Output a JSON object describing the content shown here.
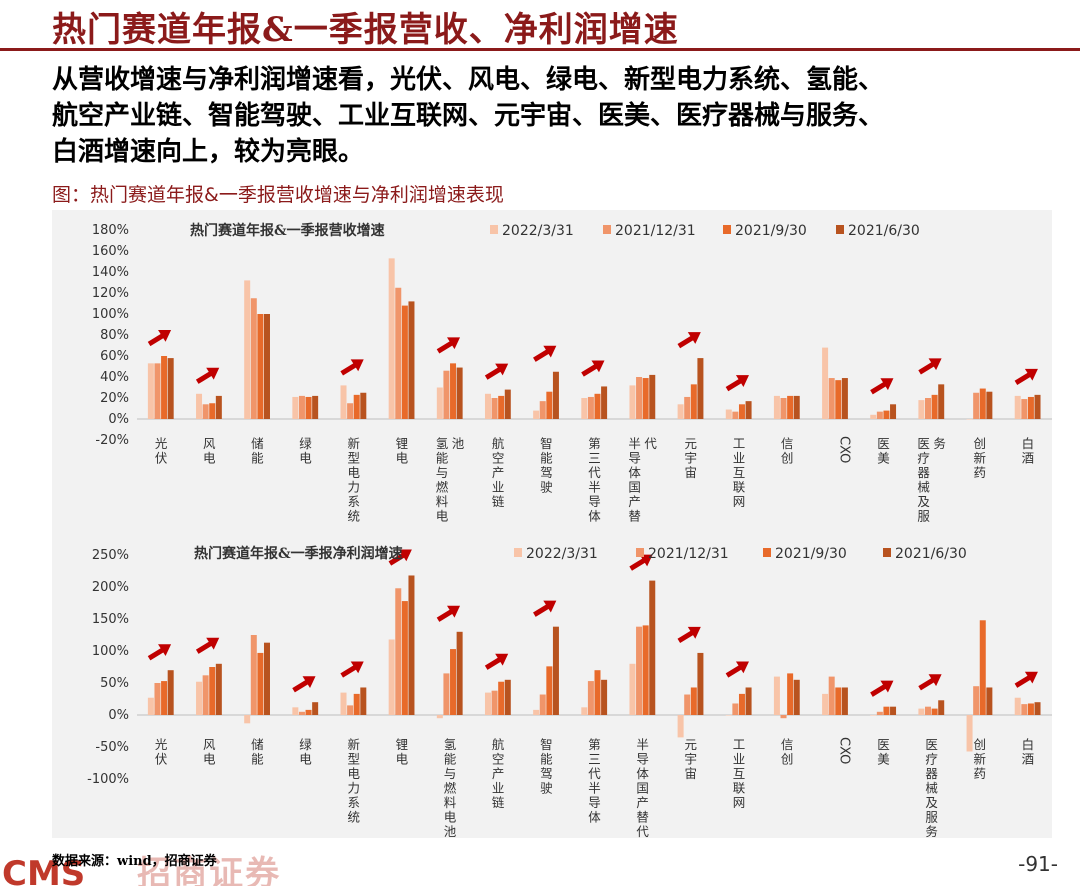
{
  "page": {
    "title": "热门赛道年报&一季报营收、净利润增速",
    "body_lines": [
      "从营收增速与净利润增速看，光伏、风电、绿电、新型电力系统、氢能、",
      "航空产业链、智能驾驶、工业互联网、元宇宙、医美、医疗器械与服务、",
      "白酒增速向上，较为亮眼。"
    ],
    "figure_label": "图：热门赛道年报&一季报营收增速与净利润增速表现",
    "source": "数据来源：wind，招商证券",
    "logo_text": "CMS",
    "logo_cn": "招商证券",
    "page_number": "-91-"
  },
  "colors": {
    "series": [
      "#f8c4a8",
      "#f0956a",
      "#e86a2a",
      "#b8531f"
    ],
    "arrow": "#c00000",
    "title": "#8B1A1A"
  },
  "chart_data": [
    {
      "type": "bar",
      "title": "热门赛道年报&一季报营收增速",
      "categories": [
        "光伏",
        "风电",
        "储能",
        "绿电",
        "新型电力系统",
        "锂电",
        "氢能与燃料电池",
        "航空产业链",
        "智能驾驶",
        "第三代半导体",
        "半导体国产替代",
        "元宇宙",
        "工业互联网",
        "信创",
        "CXO",
        "医美",
        "医疗器械及服务",
        "创新药",
        "白酒"
      ],
      "category_line_breaks": [
        [
          "光伏"
        ],
        [
          "风电"
        ],
        [
          "储能"
        ],
        [
          "绿电"
        ],
        [
          "新型电力系统"
        ],
        [
          "锂电"
        ],
        [
          "氢能与燃料电",
          "池"
        ],
        [
          "航空产业链"
        ],
        [
          "智能驾驶"
        ],
        [
          "第三代半导体"
        ],
        [
          "半导体国产替",
          "代"
        ],
        [
          "元宇宙"
        ],
        [
          "工业互联网"
        ],
        [
          "信创"
        ],
        [
          "CXO"
        ],
        [
          "医美"
        ],
        [
          "医疗器械及服",
          "务"
        ],
        [
          "创新药"
        ],
        [
          "白酒"
        ]
      ],
      "series": [
        {
          "name": "2022/3/31",
          "values": [
            53,
            24,
            132,
            21,
            32,
            153,
            30,
            24,
            8,
            20,
            32,
            14,
            9,
            22,
            68,
            4,
            18,
            0,
            22
          ]
        },
        {
          "name": "2021/12/31",
          "values": [
            53,
            14,
            115,
            22,
            15,
            125,
            46,
            20,
            17,
            21,
            40,
            21,
            7,
            20,
            39,
            7,
            20,
            25,
            19
          ]
        },
        {
          "name": "2021/9/30",
          "values": [
            60,
            15,
            100,
            21,
            23,
            108,
            53,
            22,
            26,
            24,
            39,
            33,
            14,
            22,
            37,
            8,
            23,
            29,
            21
          ]
        },
        {
          "name": "2021/6/30",
          "values": [
            58,
            22,
            100,
            22,
            25,
            112,
            49,
            28,
            45,
            31,
            42,
            58,
            17,
            22,
            39,
            14,
            33,
            26,
            23
          ]
        }
      ],
      "y_unit": "%",
      "ylim": [
        -20,
        180
      ],
      "y_ticks": [
        -20,
        0,
        20,
        40,
        60,
        80,
        100,
        120,
        140,
        160,
        180
      ],
      "arrows_after": [
        "光伏",
        "风电",
        "新型电力系统",
        "氢能与燃料电池",
        "航空产业链",
        "智能驾驶",
        "第三代半导体",
        "元宇宙",
        "工业互联网",
        "医美",
        "医疗器械及服务",
        "白酒"
      ],
      "legend_position": "top-right",
      "grid": false
    },
    {
      "type": "bar",
      "title": "热门赛道年报&一季报净利润增速",
      "categories": [
        "光伏",
        "风电",
        "储能",
        "绿电",
        "新型电力系统",
        "锂电",
        "氢能与燃料电池",
        "航空产业链",
        "智能驾驶",
        "第三代半导体",
        "半导体国产替代",
        "元宇宙",
        "工业互联网",
        "信创",
        "CXO",
        "医美",
        "医疗器械及服务",
        "创新药",
        "白酒"
      ],
      "category_line_breaks": [
        [
          "光伏"
        ],
        [
          "风电"
        ],
        [
          "储能"
        ],
        [
          "绿电"
        ],
        [
          "新型电力系统"
        ],
        [
          "锂电"
        ],
        [
          "氢能与燃料电池"
        ],
        [
          "航空产业链"
        ],
        [
          "智能驾驶"
        ],
        [
          "第三代半导体"
        ],
        [
          "半导体国产替代"
        ],
        [
          "元宇宙"
        ],
        [
          "工业互联网"
        ],
        [
          "信创"
        ],
        [
          "CXO"
        ],
        [
          "医美"
        ],
        [
          "医疗器械及服务"
        ],
        [
          "创新药"
        ],
        [
          "白酒"
        ]
      ],
      "series": [
        {
          "name": "2022/3/31",
          "values": [
            27,
            52,
            -13,
            12,
            35,
            118,
            -5,
            35,
            8,
            12,
            80,
            -35,
            0,
            60,
            33,
            0,
            10,
            -57,
            27
          ]
        },
        {
          "name": "2021/12/31",
          "values": [
            50,
            62,
            125,
            5,
            15,
            198,
            65,
            38,
            32,
            53,
            138,
            32,
            18,
            -5,
            60,
            5,
            13,
            45,
            17
          ]
        },
        {
          "name": "2021/9/30",
          "values": [
            53,
            75,
            97,
            8,
            33,
            178,
            103,
            52,
            76,
            70,
            140,
            43,
            33,
            65,
            43,
            13,
            10,
            148,
            18
          ]
        },
        {
          "name": "2021/6/30",
          "values": [
            70,
            80,
            113,
            20,
            43,
            218,
            130,
            55,
            138,
            55,
            210,
            97,
            43,
            55,
            43,
            13,
            23,
            43,
            20
          ]
        }
      ],
      "y_unit": "%",
      "ylim": [
        -100,
        250
      ],
      "y_ticks": [
        -100,
        -50,
        0,
        50,
        100,
        150,
        200,
        250
      ],
      "arrows_after": [
        "光伏",
        "风电",
        "绿电",
        "新型电力系统",
        "锂电",
        "氢能与燃料电池",
        "航空产业链",
        "智能驾驶",
        "半导体国产替代",
        "元宇宙",
        "工业互联网",
        "医美",
        "医疗器械及服务",
        "白酒"
      ],
      "legend_position": "top-right",
      "grid": false
    }
  ]
}
